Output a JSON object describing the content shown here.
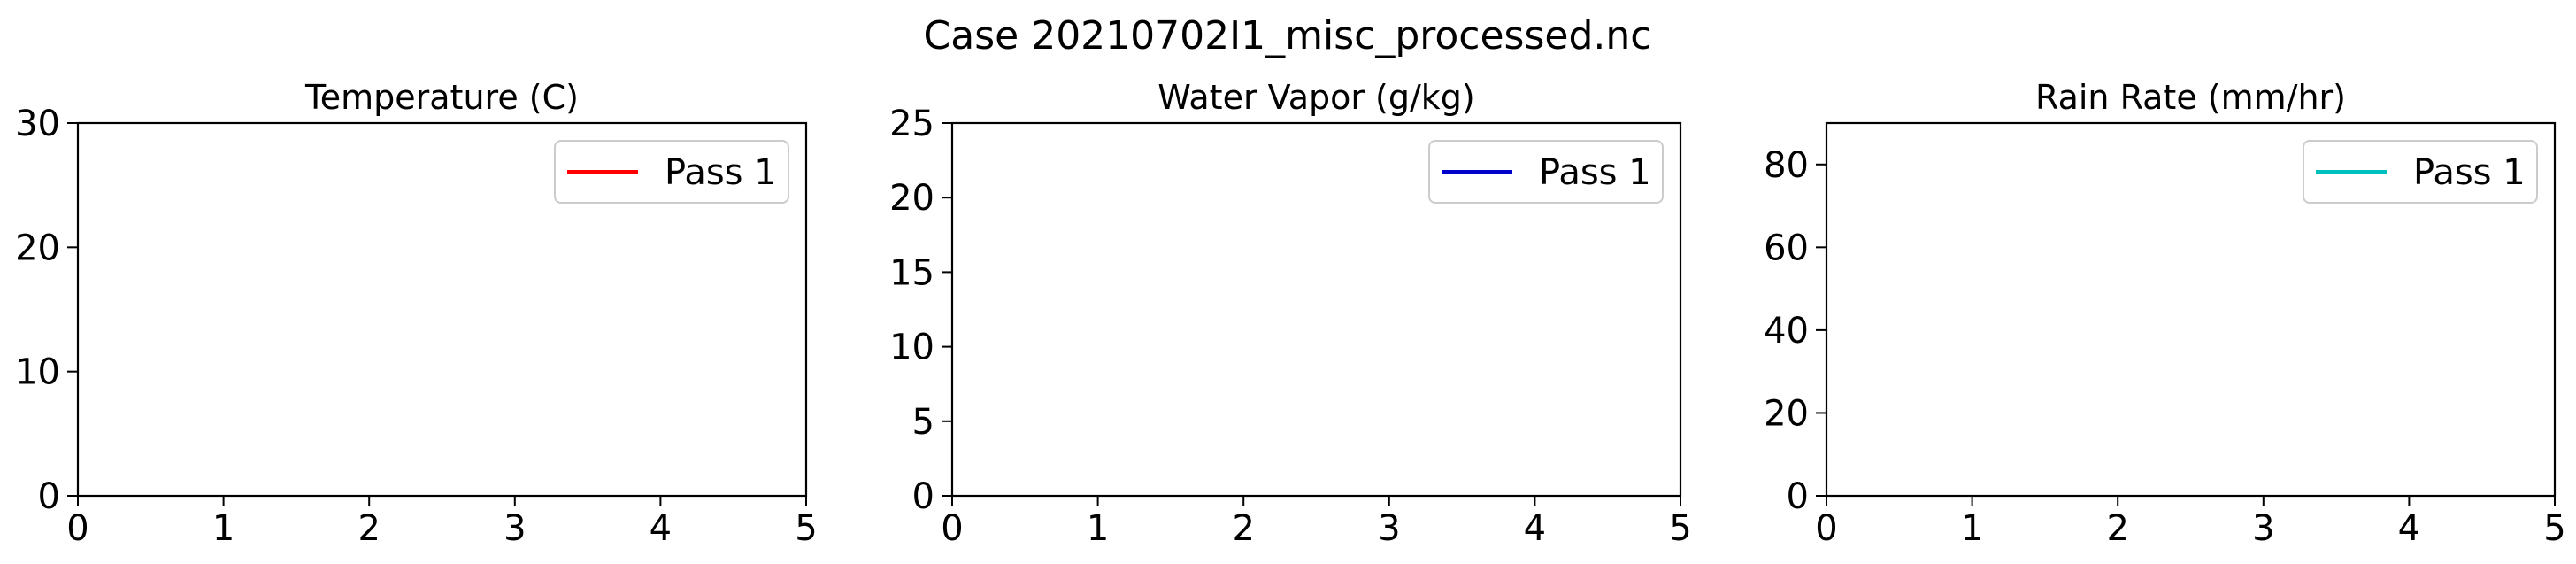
{
  "figure": {
    "title": "Case 20210702I1_misc_processed.nc"
  },
  "chart_data": [
    {
      "type": "line",
      "title": "Temperature (C)",
      "xlabel": "",
      "ylabel": "",
      "xlim": [
        0,
        5
      ],
      "ylim": [
        0,
        30
      ],
      "xticks": [
        "0",
        "1",
        "2",
        "3",
        "4",
        "5"
      ],
      "yticks": [
        "0",
        "10",
        "20",
        "30"
      ],
      "grid": false,
      "legend_position": "top-right",
      "series": [
        {
          "name": "Pass 1",
          "color": "#ff0000",
          "x": [],
          "y": []
        }
      ]
    },
    {
      "type": "line",
      "title": "Water Vapor (g/kg)",
      "xlabel": "",
      "ylabel": "",
      "xlim": [
        0,
        5
      ],
      "ylim": [
        0,
        25
      ],
      "xticks": [
        "0",
        "1",
        "2",
        "3",
        "4",
        "5"
      ],
      "yticks": [
        "0",
        "5",
        "10",
        "15",
        "20",
        "25"
      ],
      "grid": false,
      "legend_position": "top-right",
      "series": [
        {
          "name": "Pass 1",
          "color": "#0000cc",
          "x": [],
          "y": []
        }
      ]
    },
    {
      "type": "line",
      "title": "Rain Rate (mm/hr)",
      "xlabel": "",
      "ylabel": "",
      "xlim": [
        0,
        5
      ],
      "ylim": [
        0,
        90
      ],
      "xticks": [
        "0",
        "1",
        "2",
        "3",
        "4",
        "5"
      ],
      "yticks": [
        "0",
        "20",
        "40",
        "60",
        "80"
      ],
      "grid": false,
      "legend_position": "top-right",
      "series": [
        {
          "name": "Pass 1",
          "color": "#00bfbf",
          "x": [],
          "y": []
        }
      ]
    }
  ]
}
